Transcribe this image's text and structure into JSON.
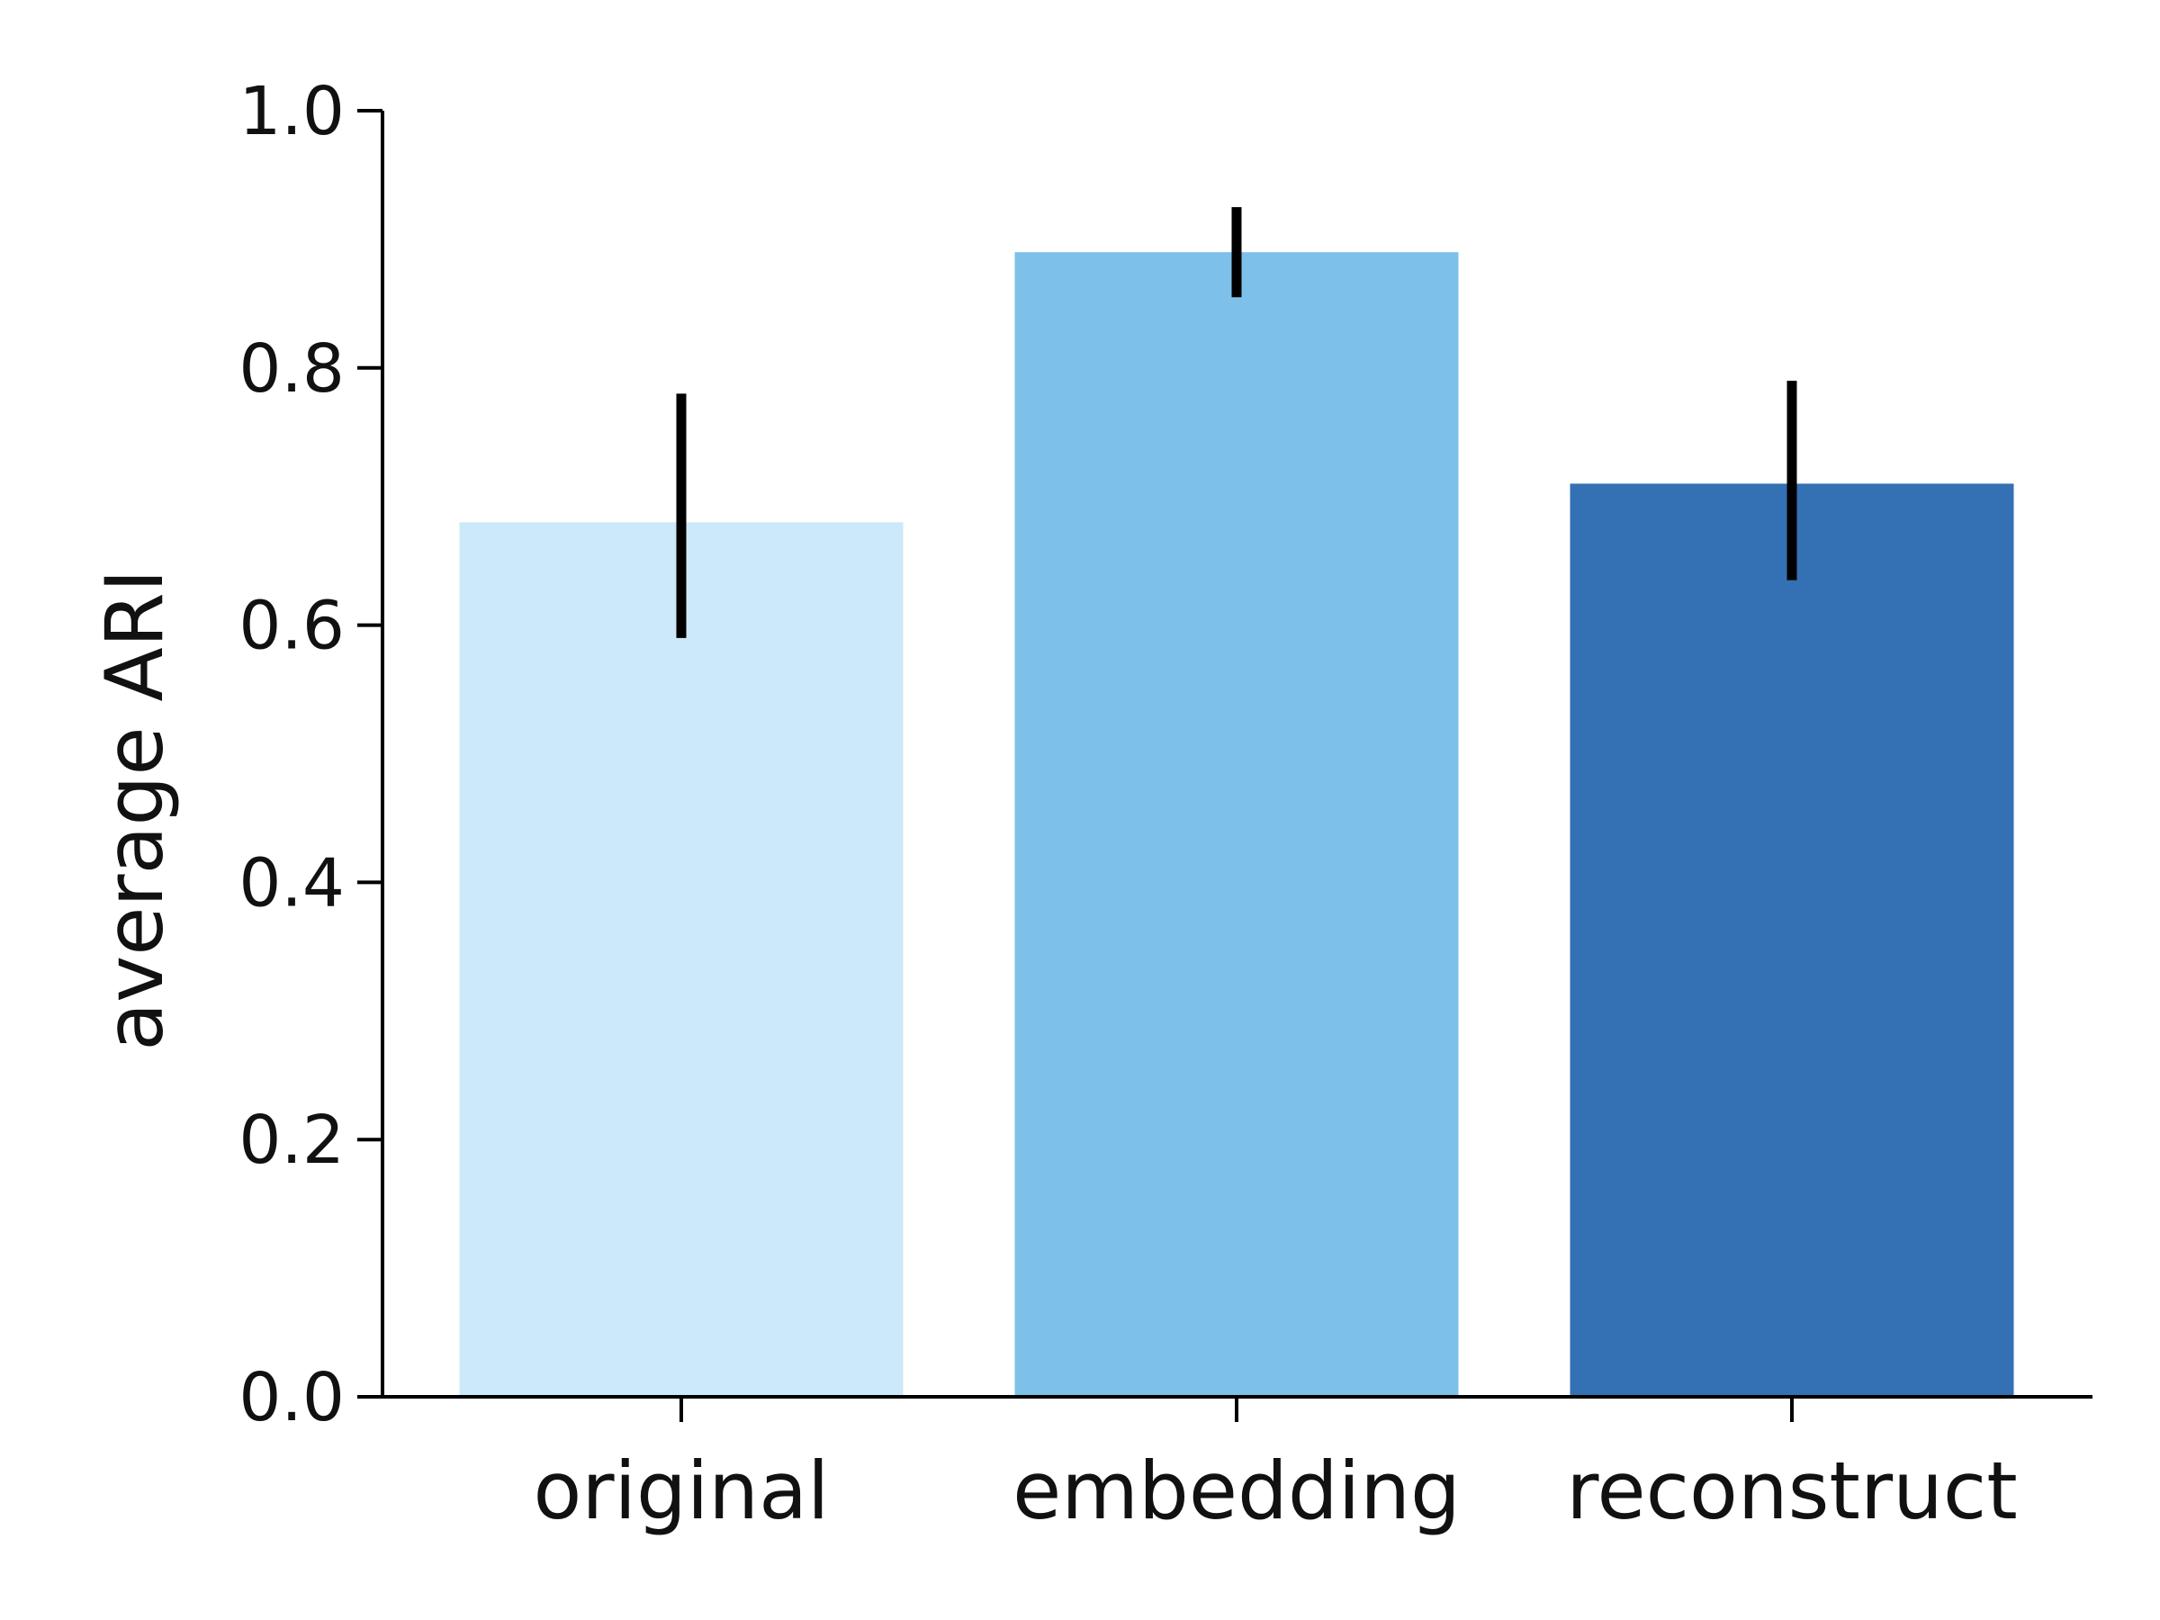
{
  "chart_data": {
    "type": "bar",
    "title": "",
    "xlabel": "",
    "ylabel": "average ARI",
    "ylim": [
      0,
      1.0
    ],
    "yticks": [
      "0.0",
      "0.2",
      "0.4",
      "0.6",
      "0.8",
      "1.0"
    ],
    "categories": [
      "original",
      "embedding",
      "reconstruct"
    ],
    "values": [
      0.68,
      0.89,
      0.71
    ],
    "errors": [
      {
        "low": 0.59,
        "high": 0.78
      },
      {
        "low": 0.855,
        "high": 0.925
      },
      {
        "low": 0.635,
        "high": 0.79
      }
    ],
    "colors": [
      "#cce9f9",
      "#7dc0e9",
      "#3470b4"
    ],
    "error_color": "#000000",
    "grid": false,
    "legend": "none"
  }
}
